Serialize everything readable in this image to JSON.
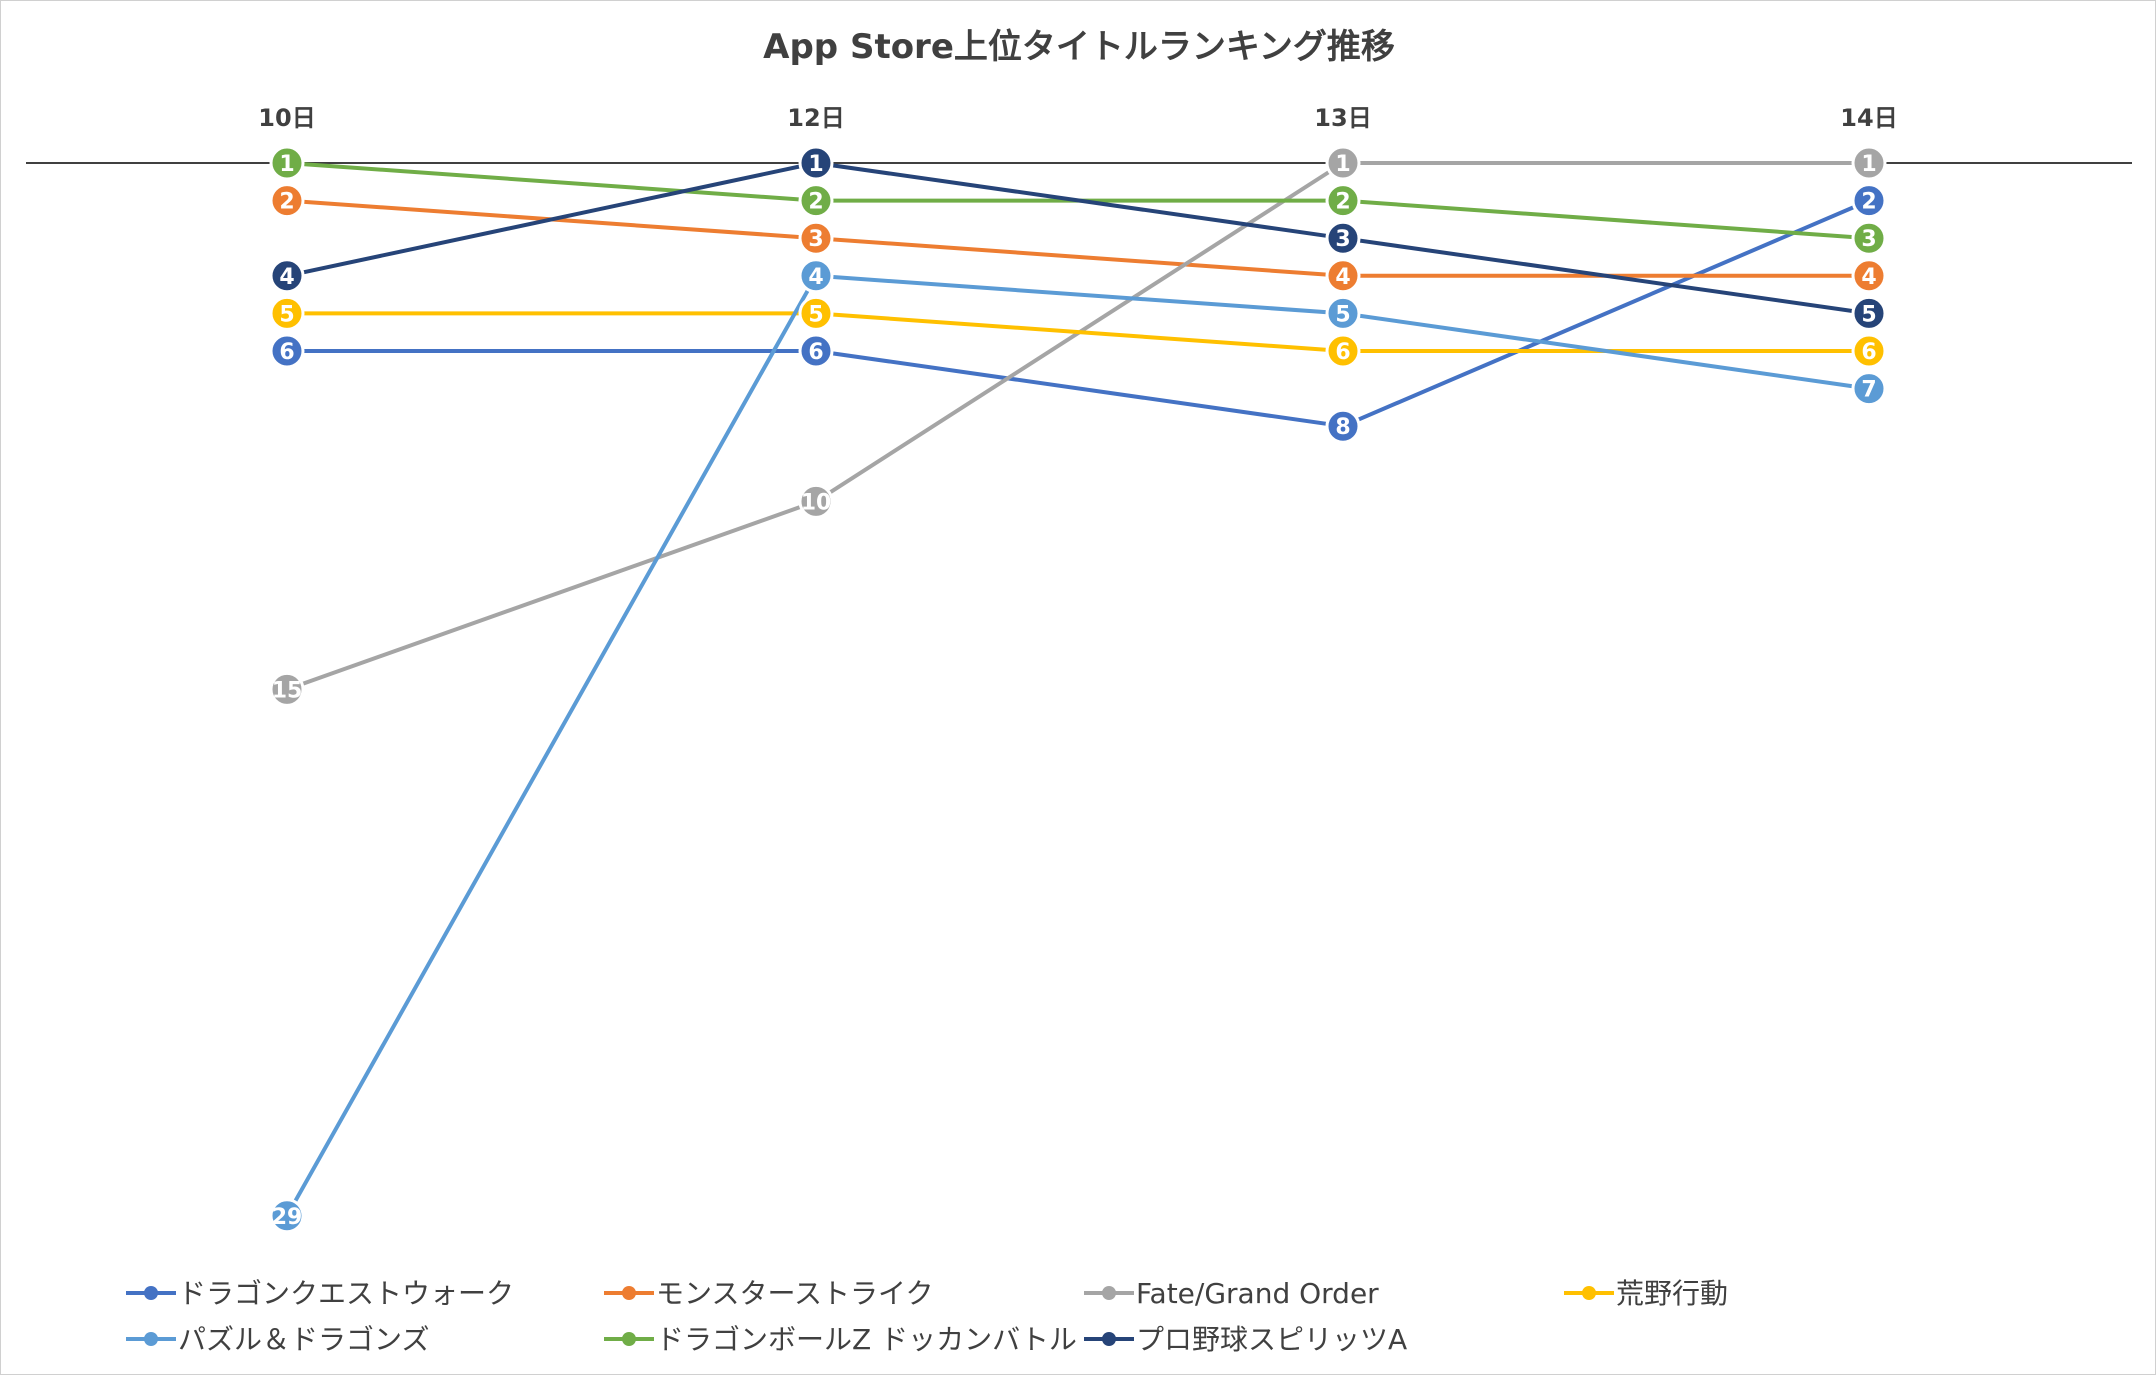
{
  "chart_data": {
    "type": "line",
    "title": "App Store上位タイトルランキング推移",
    "categories": [
      "10日",
      "12日",
      "13日",
      "14日"
    ],
    "y_axis": {
      "reversed": true,
      "min": 1,
      "max": 29,
      "visible": false
    },
    "legend": "bottom",
    "series": [
      {
        "name": "ドラゴンクエストウォーク",
        "color": "#4472C4",
        "values": [
          6,
          6,
          8,
          2
        ]
      },
      {
        "name": "モンスターストライク",
        "color": "#ED7D31",
        "values": [
          2,
          3,
          4,
          4
        ]
      },
      {
        "name": "Fate/Grand Order",
        "color": "#A5A5A5",
        "values": [
          15,
          10,
          1,
          1
        ]
      },
      {
        "name": "荒野行動",
        "color": "#FFC000",
        "values": [
          5,
          5,
          6,
          6
        ]
      },
      {
        "name": "パズル＆ドラゴンズ",
        "color": "#5B9BD5",
        "values": [
          29,
          4,
          5,
          7
        ]
      },
      {
        "name": "ドラゴンボールZ ドッカンバトル",
        "color": "#70AD47",
        "values": [
          1,
          2,
          2,
          3
        ]
      },
      {
        "name": "プロ野球スピリッツA",
        "color": "#264478",
        "values": [
          4,
          1,
          3,
          5
        ]
      }
    ]
  }
}
